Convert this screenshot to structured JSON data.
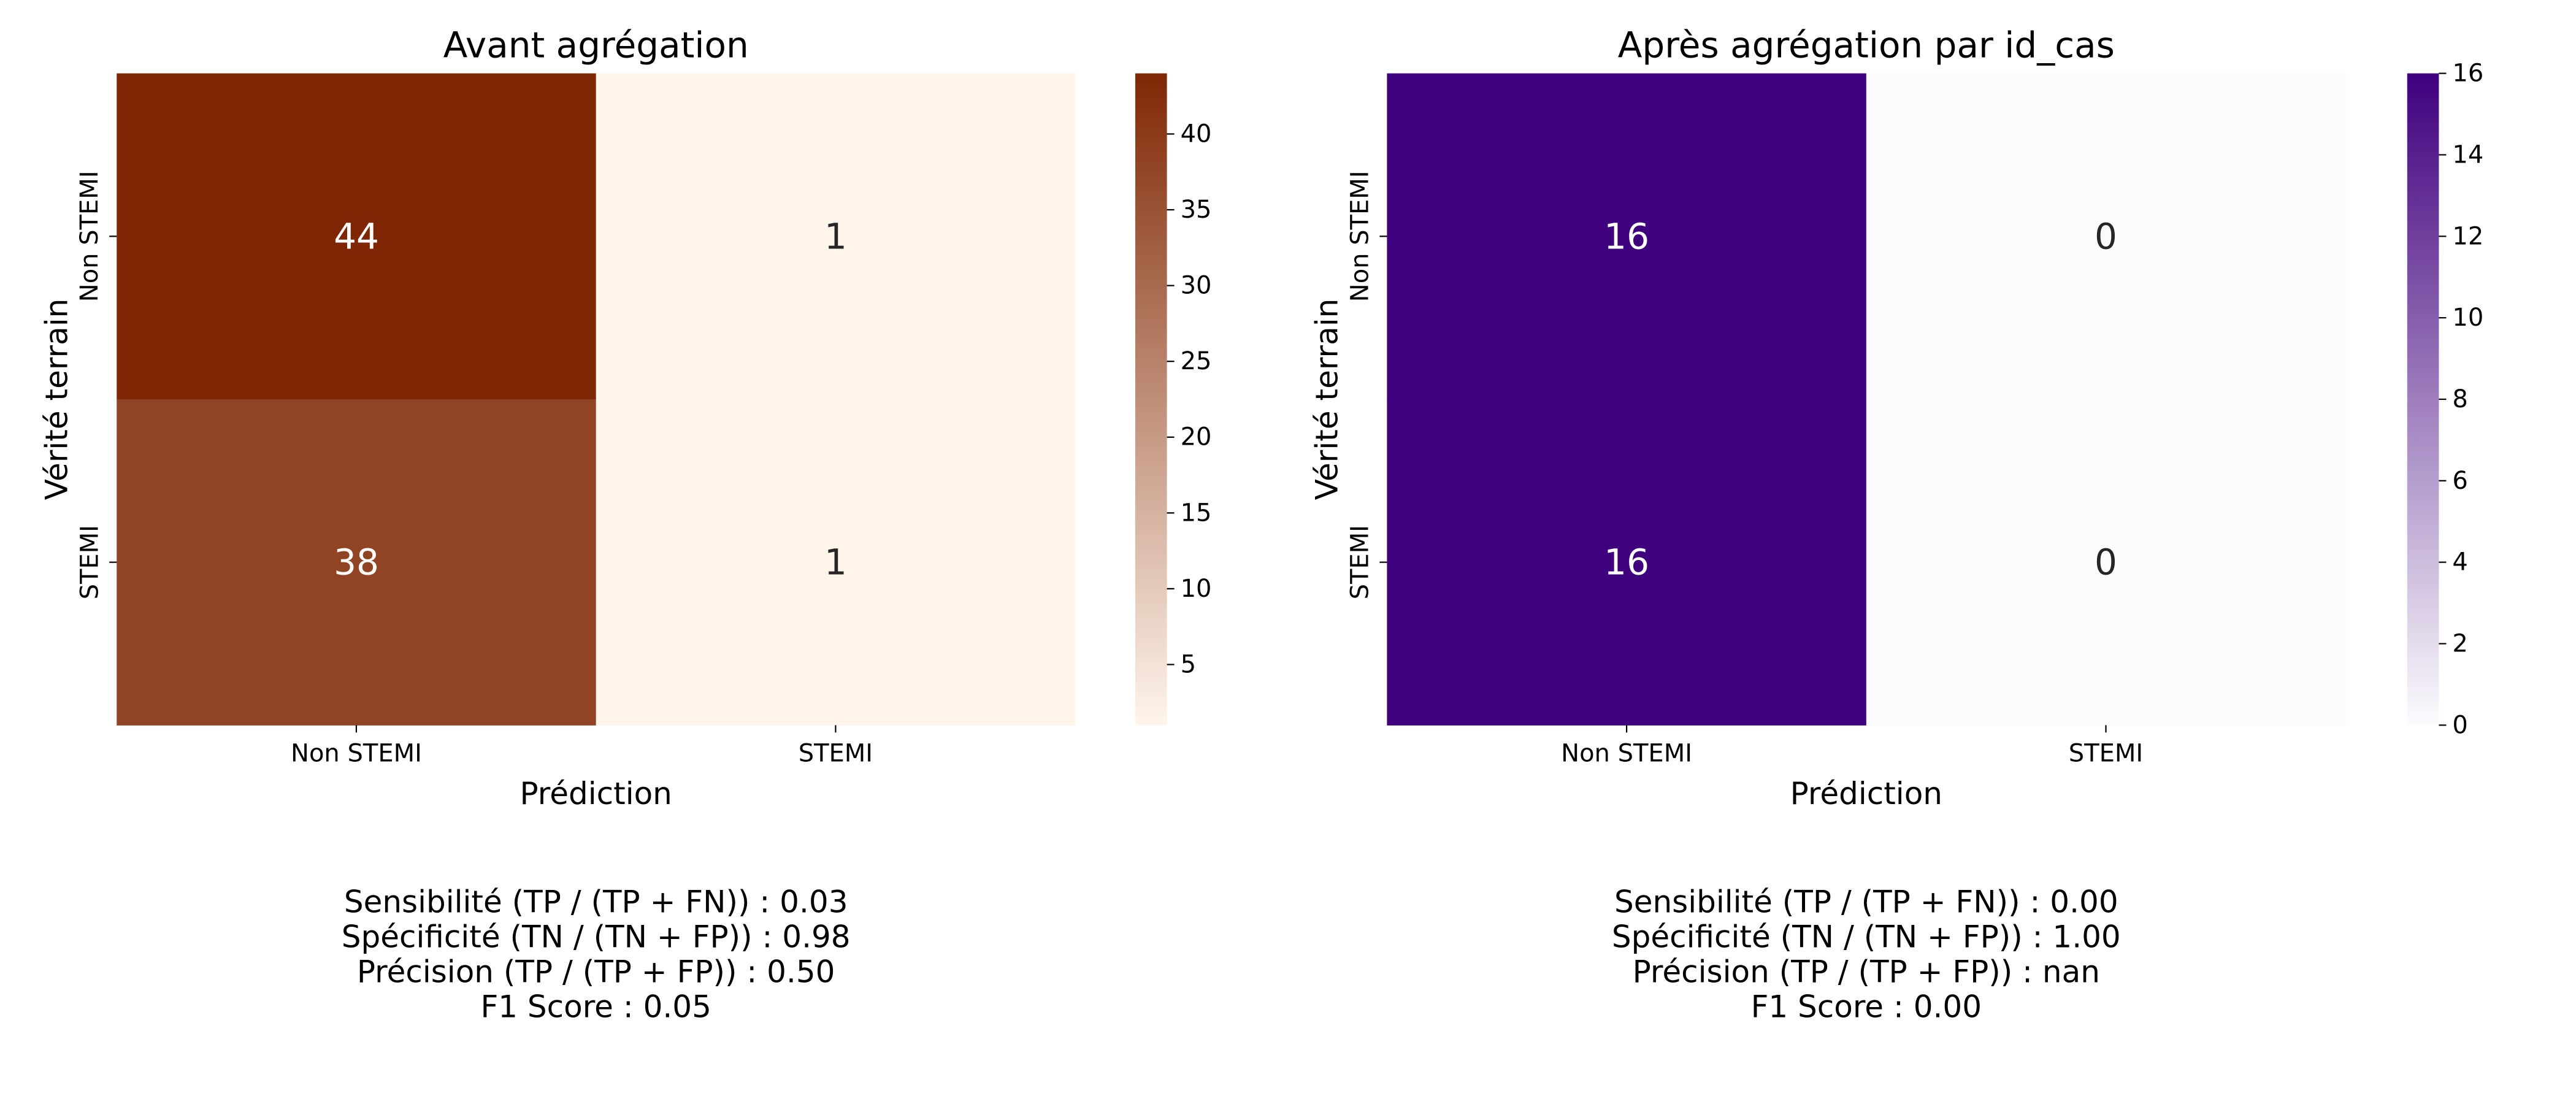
{
  "chart_data": [
    {
      "type": "heatmap",
      "title": "Avant agrégation",
      "xlabel": "Prédiction",
      "ylabel": "Vérité terrain",
      "x_categories": [
        "Non STEMI",
        "STEMI"
      ],
      "y_categories": [
        "Non STEMI",
        "STEMI"
      ],
      "values": [
        [
          44,
          1
        ],
        [
          38,
          1
        ]
      ],
      "colormap": "Oranges",
      "color_low": "#fff5eb",
      "color_high": "#7f2704",
      "colorbar": {
        "min": 1,
        "max": 44,
        "ticks": [
          5,
          10,
          15,
          20,
          25,
          30,
          35,
          40
        ]
      },
      "metrics": [
        "Sensibilité (TP / (TP + FN)) : 0.03",
        "Spécificité (TN / (TN + FP)) : 0.98",
        "Précision (TP / (TP + FP)) : 0.50",
        "F1 Score : 0.05"
      ]
    },
    {
      "type": "heatmap",
      "title": "Après agrégation par id_cas",
      "xlabel": "Prédiction",
      "ylabel": "Vérité terrain",
      "x_categories": [
        "Non STEMI",
        "STEMI"
      ],
      "y_categories": [
        "Non STEMI",
        "STEMI"
      ],
      "values": [
        [
          16,
          0
        ],
        [
          16,
          0
        ]
      ],
      "colormap": "Purples",
      "color_low": "#fcfbfd",
      "color_high": "#3f007d",
      "colorbar": {
        "min": 0,
        "max": 16,
        "ticks": [
          0,
          2,
          4,
          6,
          8,
          10,
          12,
          14,
          16
        ]
      },
      "metrics": [
        "Sensibilité (TP / (TP + FN)) : 0.00",
        "Spécificité (TN / (TN + FP)) : 1.00",
        "Précision (TP / (TP + FP)) : nan",
        "F1 Score : 0.00"
      ]
    }
  ]
}
